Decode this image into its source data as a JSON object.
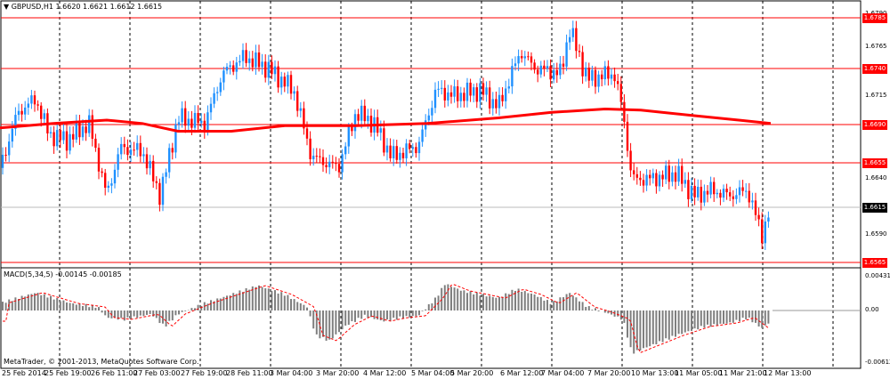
{
  "header": {
    "arrow": "▼",
    "symbol_text": "GBPUSD,H1  1.6620 1.6621 1.6612 1.6615"
  },
  "price_axis": {
    "labels": [
      "1.6790",
      "1.6765",
      "1.6715",
      "1.6640",
      "1.6590"
    ],
    "hline_tags": [
      "1.6785",
      "1.6740",
      "1.6690",
      "1.6655",
      "1.6565"
    ],
    "current_tag": "1.6615"
  },
  "macd": {
    "label": "MACD(5,34,5) -0.00145 -0.00185",
    "axis_labels": [
      "0.00431",
      "0.00",
      "-0.00612"
    ]
  },
  "footer": {
    "copyright": "MetaTrader, © 2001-2013, MetaQuotes Software Corp."
  },
  "time_axis": {
    "labels": [
      "25 Feb 2014",
      "25 Feb 19:00",
      "26 Feb 11:00",
      "27 Feb 03:00",
      "27 Feb 19:00",
      "28 Feb 11:00",
      "3 Mar 04:00",
      "3 Mar 20:00",
      "4 Mar 12:00",
      "5 Mar 04:00",
      "5 Mar 20:00",
      "6 Mar 12:00",
      "7 Mar 04:00",
      "7 Mar 20:00",
      "10 Mar 13:00",
      "11 Mar 05:00",
      "11 Mar 21:00",
      "12 Mar 13:00"
    ]
  },
  "colors": {
    "bull": "#1e90ff",
    "bear": "#ff0000",
    "ma": "#ff0000",
    "hline": "#ff0000",
    "grid": "#000000"
  }
}
